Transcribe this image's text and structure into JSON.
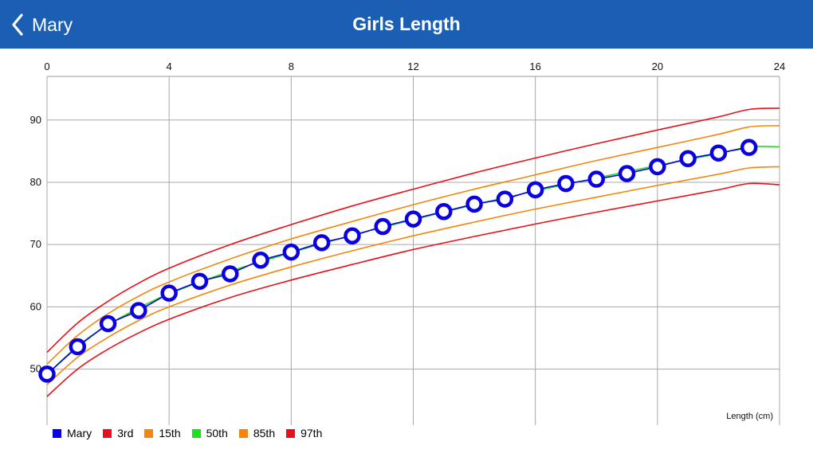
{
  "nav": {
    "back_label": "Mary",
    "title": "Girls Length"
  },
  "chart_data": {
    "type": "line",
    "title": "Girls Length",
    "xlabel": "",
    "ylabel": "",
    "annotation": "Length (cm)",
    "xlim": [
      0,
      24
    ],
    "ylim": [
      41,
      97
    ],
    "x_ticks": [
      0,
      4,
      8,
      12,
      16,
      20,
      24
    ],
    "y_ticks": [
      50,
      60,
      70,
      80,
      90
    ],
    "x_axis_position": "top",
    "grid": true,
    "legend_position": "bottom-left",
    "percentiles": [
      {
        "name": "3rd",
        "color": "#e8101a",
        "x": [
          0,
          1,
          2,
          3,
          4,
          6,
          8,
          10,
          12,
          14,
          16,
          18,
          20,
          22,
          23,
          24
        ],
        "values": [
          45.6,
          50.0,
          53.2,
          55.8,
          58.0,
          61.5,
          64.3,
          66.8,
          69.2,
          71.3,
          73.3,
          75.2,
          77.0,
          78.8,
          79.8,
          79.6
        ]
      },
      {
        "name": "15th",
        "color": "#f4860c",
        "x": [
          0,
          1,
          2,
          3,
          4,
          6,
          8,
          10,
          12,
          14,
          16,
          18,
          20,
          22,
          23,
          24
        ],
        "values": [
          47.5,
          51.9,
          55.1,
          57.8,
          60.0,
          63.5,
          66.4,
          69.0,
          71.4,
          73.6,
          75.7,
          77.6,
          79.5,
          81.3,
          82.3,
          82.5
        ]
      },
      {
        "name": "50th",
        "color": "#1ce01c",
        "x": [
          0,
          1,
          2,
          3,
          4,
          6,
          8,
          10,
          12,
          14,
          16,
          18,
          20,
          22,
          23,
          24
        ],
        "values": [
          49.1,
          53.7,
          57.1,
          59.8,
          62.1,
          65.7,
          68.7,
          71.5,
          74.0,
          76.4,
          78.6,
          80.7,
          82.7,
          84.6,
          85.7,
          85.7
        ]
      },
      {
        "name": "85th",
        "color": "#f4860c",
        "x": [
          0,
          1,
          2,
          3,
          4,
          6,
          8,
          10,
          12,
          14,
          16,
          18,
          20,
          22,
          23,
          24
        ],
        "values": [
          50.8,
          55.4,
          58.9,
          61.7,
          64.0,
          67.7,
          70.9,
          73.7,
          76.4,
          78.9,
          81.2,
          83.5,
          85.6,
          87.7,
          88.9,
          89.1
        ]
      },
      {
        "name": "97th",
        "color": "#e8101a",
        "x": [
          0,
          1,
          2,
          3,
          4,
          6,
          8,
          10,
          12,
          14,
          16,
          18,
          20,
          22,
          23,
          24
        ],
        "values": [
          52.7,
          57.4,
          60.9,
          63.8,
          66.2,
          70.0,
          73.2,
          76.2,
          78.9,
          81.5,
          83.9,
          86.2,
          88.4,
          90.5,
          91.7,
          91.9
        ]
      }
    ],
    "series": [
      {
        "name": "Mary",
        "color": "#0b00e0",
        "x": [
          0,
          1,
          2,
          3,
          4,
          5,
          6,
          7,
          8,
          9,
          10,
          11,
          12,
          13,
          14,
          15,
          16,
          17,
          18,
          19,
          20,
          21,
          22,
          23
        ],
        "values": [
          49.2,
          53.6,
          57.3,
          59.4,
          62.2,
          64.1,
          65.3,
          67.5,
          68.8,
          70.3,
          71.4,
          72.9,
          74.1,
          75.3,
          76.5,
          77.3,
          78.8,
          79.8,
          80.5,
          81.4,
          82.5,
          83.8,
          84.7,
          85.6
        ]
      }
    ],
    "legend": [
      {
        "label": "Mary",
        "color": "#0b00e0"
      },
      {
        "label": "3rd",
        "color": "#e8101a"
      },
      {
        "label": "15th",
        "color": "#f4860c"
      },
      {
        "label": "50th",
        "color": "#1ce01c"
      },
      {
        "label": "85th",
        "color": "#f4860c"
      },
      {
        "label": "97th",
        "color": "#e8101a"
      }
    ]
  }
}
